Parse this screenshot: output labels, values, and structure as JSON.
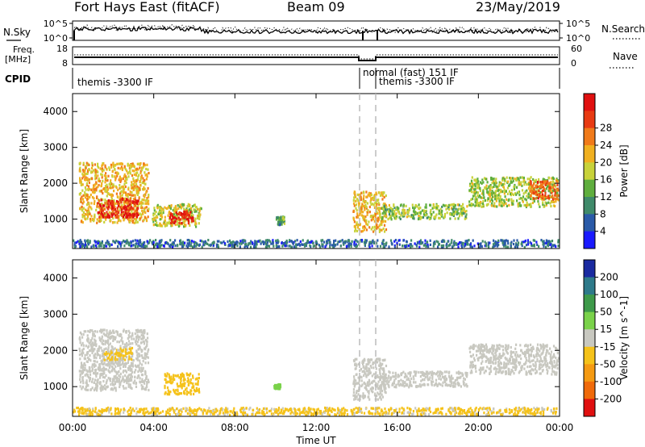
{
  "header": {
    "station": "Fort Hays East (fitACF)",
    "beam": "Beam 09",
    "date": "23/May/2019"
  },
  "top_panel": {
    "left_label": "N.Sky",
    "right_label": "N.Search",
    "ticks_left": [
      "10^5",
      "10^0"
    ],
    "ticks_right": [
      "10^5",
      "10^0"
    ]
  },
  "freq_panel": {
    "left_label_1": "Freq.",
    "left_label_2": "[MHz]",
    "ticks_left": [
      "18",
      "8"
    ],
    "right_label": "Nave",
    "ticks_right": [
      "60",
      "0"
    ]
  },
  "cpid_panel": {
    "label": "CPID",
    "segments": [
      {
        "text": "themis -3300 IF"
      },
      {
        "text": "normal (fast) 151 IF"
      },
      {
        "text": "themis -3300 IF"
      }
    ]
  },
  "x_axis": {
    "label": "Time UT",
    "ticks": [
      "00:00",
      "04:00",
      "08:00",
      "12:00",
      "16:00",
      "20:00",
      "00:00"
    ]
  },
  "colors": {
    "power": [
      "#1a1aff",
      "#2a5aa8",
      "#3f8a6a",
      "#5fae3e",
      "#c8d23a",
      "#f0b020",
      "#f07a1a",
      "#e83a12",
      "#e01010"
    ],
    "velocity": [
      "#1a2aa0",
      "#2e7a8a",
      "#3e9a4a",
      "#7ad24a",
      "#c8c8c0",
      "#f5c21a",
      "#f59a12",
      "#f06a0a",
      "#e01010"
    ]
  },
  "chart_data": [
    {
      "type": "heatmap",
      "title": "",
      "xlabel": "Time UT",
      "ylabel": "Slant Range [km]",
      "xlim_hours": [
        0,
        24
      ],
      "ylim": [
        180,
        4500
      ],
      "yticks": [
        "1000",
        "2000",
        "3000",
        "4000"
      ],
      "colorbar": {
        "label": "Power [dB]",
        "ticks": [
          "4",
          "8",
          "12",
          "16",
          "20",
          "24",
          "28"
        ],
        "range": [
          0,
          30
        ]
      },
      "regions": [
        {
          "t0": 0.3,
          "t1": 3.8,
          "r0": 850,
          "r1": 2600,
          "value": 18
        },
        {
          "t0": 1.2,
          "t1": 3.3,
          "r0": 1000,
          "r1": 1600,
          "value": 27
        },
        {
          "t0": 3.9,
          "t1": 6.4,
          "r0": 750,
          "r1": 1450,
          "value": 15
        },
        {
          "t0": 4.7,
          "t1": 6.0,
          "r0": 850,
          "r1": 1250,
          "value": 27
        },
        {
          "t0": 10.0,
          "t1": 10.5,
          "r0": 800,
          "r1": 1100,
          "value": 10
        },
        {
          "t0": 13.8,
          "t1": 15.5,
          "r0": 600,
          "r1": 1800,
          "value": 18
        },
        {
          "t0": 15.2,
          "t1": 19.5,
          "r0": 950,
          "r1": 1450,
          "value": 13
        },
        {
          "t0": 19.5,
          "t1": 24.0,
          "r0": 1300,
          "r1": 2200,
          "value": 14
        },
        {
          "t0": 22.5,
          "t1": 24.0,
          "r0": 1500,
          "r1": 2100,
          "value": 23
        },
        {
          "t0": 0.0,
          "t1": 24.0,
          "r0": 180,
          "r1": 450,
          "value": 6
        }
      ]
    },
    {
      "type": "heatmap",
      "title": "",
      "xlabel": "Time UT",
      "ylabel": "Slant Range [km]",
      "xlim_hours": [
        0,
        24
      ],
      "ylim": [
        180,
        4500
      ],
      "yticks": [
        "1000",
        "2000",
        "3000",
        "4000"
      ],
      "colorbar": {
        "label": "Velocity [m s^-1]",
        "ticks": [
          "200",
          "100",
          "50",
          "15",
          "-15",
          "-50",
          "-100",
          "-200"
        ],
        "range": [
          -250,
          250
        ]
      },
      "regions": [
        {
          "t0": 0.3,
          "t1": 3.8,
          "r0": 850,
          "r1": 2600,
          "value": 0
        },
        {
          "t0": 1.5,
          "t1": 3.0,
          "r0": 1700,
          "r1": 2100,
          "value": -40
        },
        {
          "t0": 4.5,
          "t1": 6.3,
          "r0": 750,
          "r1": 1400,
          "value": -50
        },
        {
          "t0": 9.9,
          "t1": 10.3,
          "r0": 900,
          "r1": 1100,
          "value": 60
        },
        {
          "t0": 13.8,
          "t1": 15.5,
          "r0": 600,
          "r1": 1800,
          "value": 0
        },
        {
          "t0": 15.2,
          "t1": 19.5,
          "r0": 950,
          "r1": 1450,
          "value": 0
        },
        {
          "t0": 19.5,
          "t1": 24.0,
          "r0": 1300,
          "r1": 2200,
          "value": 0
        },
        {
          "t0": 0.0,
          "t1": 24.0,
          "r0": 180,
          "r1": 450,
          "value": -40
        }
      ]
    }
  ]
}
